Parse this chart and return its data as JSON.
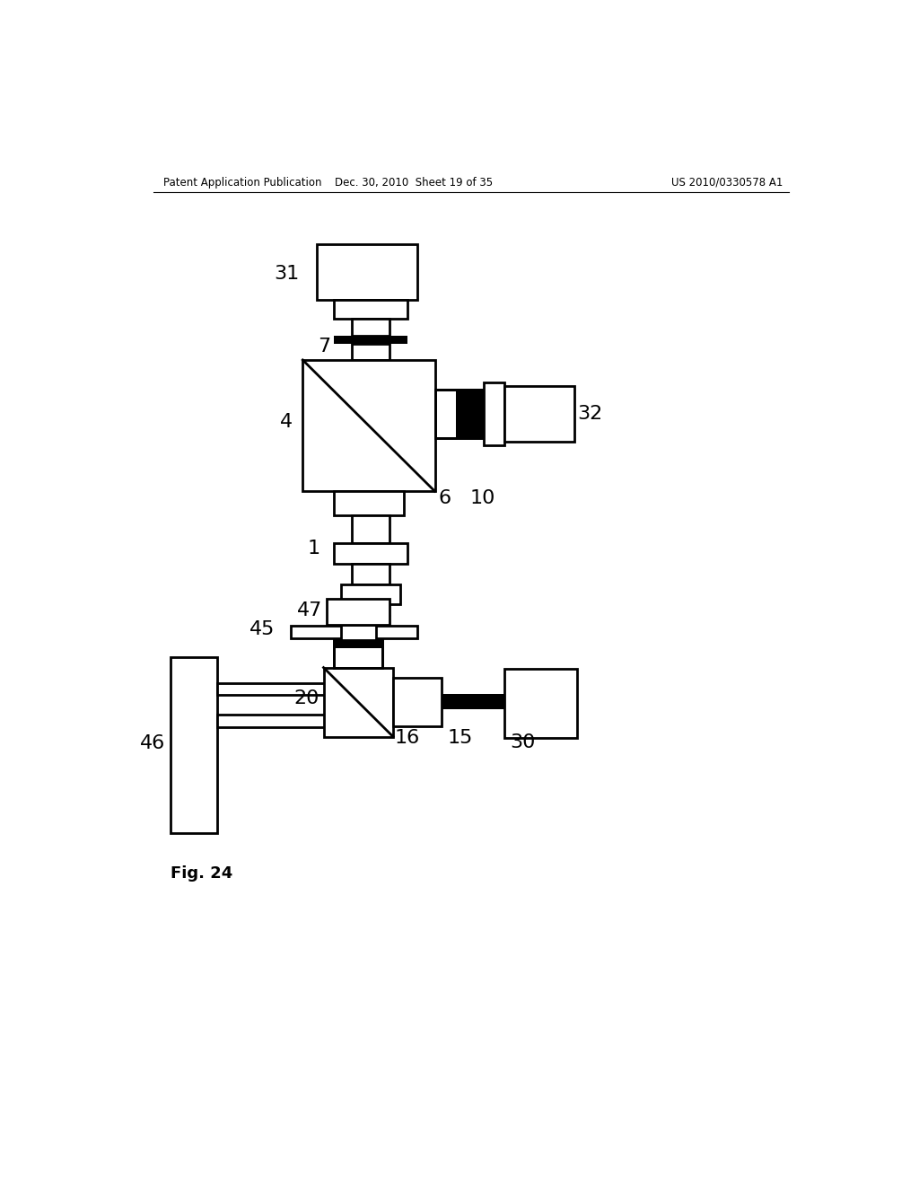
{
  "bg_color": "#ffffff",
  "line_color": "#000000",
  "header_left": "Patent Application Publication",
  "header_mid": "Dec. 30, 2010  Sheet 19 of 35",
  "header_right": "US 2010/0330578 A1",
  "fig_label": "Fig. 24"
}
